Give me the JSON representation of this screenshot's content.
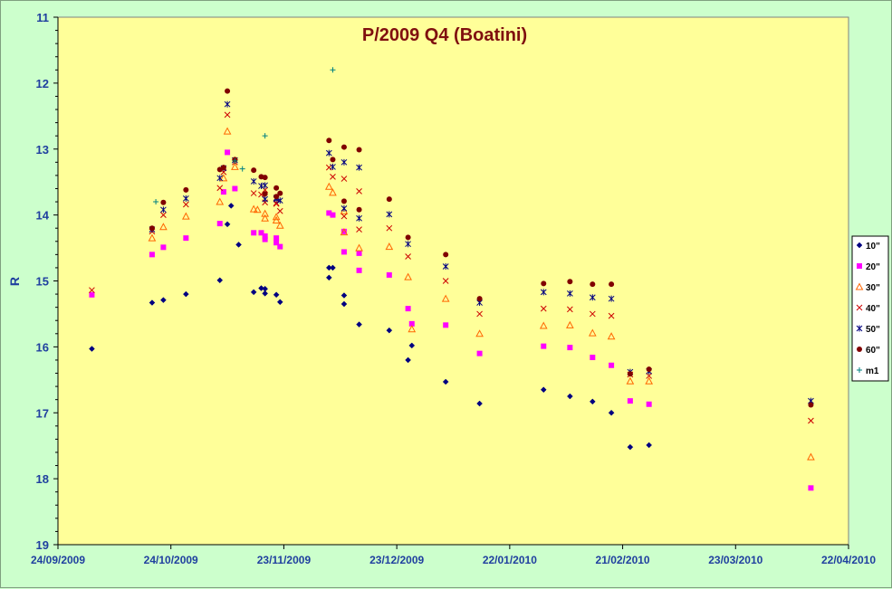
{
  "chart_data": {
    "type": "scatter",
    "title": "P/2009 Q4 (Boatini)",
    "xlabel": "",
    "ylabel": "R",
    "ylim": [
      11,
      19
    ],
    "y_reversed": true,
    "y_ticks": [
      "11",
      "12",
      "13",
      "14",
      "15",
      "16",
      "17",
      "18",
      "19"
    ],
    "x_range": [
      "2009-09-24",
      "2010-04-22"
    ],
    "x_tick_labels": [
      "24/09/2009",
      "24/10/2009",
      "23/11/2009",
      "23/12/2009",
      "22/01/2010",
      "21/02/2010",
      "23/03/2010",
      "22/04/2010"
    ],
    "grid": false,
    "legend_position": "right",
    "plot_background": "#ffff99",
    "series": [
      {
        "name": "10\"",
        "marker": "diamond",
        "color": "#000080",
        "points": [
          [
            "2009-10-03",
            16.03
          ],
          [
            "2009-10-19",
            15.33
          ],
          [
            "2009-10-22",
            15.29
          ],
          [
            "2009-10-28",
            15.2
          ],
          [
            "2009-11-06",
            14.99
          ],
          [
            "2009-11-08",
            14.14
          ],
          [
            "2009-11-09",
            13.86
          ],
          [
            "2009-11-11",
            14.45
          ],
          [
            "2009-11-15",
            15.17
          ],
          [
            "2009-11-17",
            15.11
          ],
          [
            "2009-11-18",
            15.12
          ],
          [
            "2009-11-18",
            15.19
          ],
          [
            "2009-11-21",
            15.21
          ],
          [
            "2009-11-22",
            15.32
          ],
          [
            "2009-12-05",
            14.95
          ],
          [
            "2009-12-05",
            14.8
          ],
          [
            "2009-12-06",
            14.8
          ],
          [
            "2009-12-09",
            15.22
          ],
          [
            "2009-12-09",
            15.35
          ],
          [
            "2009-12-13",
            15.66
          ],
          [
            "2009-12-21",
            15.75
          ],
          [
            "2009-12-26",
            16.2
          ],
          [
            "2009-12-27",
            15.98
          ],
          [
            "2010-01-05",
            16.53
          ],
          [
            "2010-01-14",
            16.86
          ],
          [
            "2010-01-31",
            16.65
          ],
          [
            "2010-02-07",
            16.75
          ],
          [
            "2010-02-13",
            16.83
          ],
          [
            "2010-02-18",
            17.0
          ],
          [
            "2010-02-23",
            17.52
          ],
          [
            "2010-02-28",
            17.49
          ]
        ]
      },
      {
        "name": "20\"",
        "marker": "square",
        "color": "#ff00ff",
        "points": [
          [
            "2009-10-03",
            15.21
          ],
          [
            "2009-10-19",
            14.6
          ],
          [
            "2009-10-22",
            14.49
          ],
          [
            "2009-10-28",
            14.35
          ],
          [
            "2009-11-06",
            14.13
          ],
          [
            "2009-11-07",
            13.65
          ],
          [
            "2009-11-08",
            13.05
          ],
          [
            "2009-11-10",
            13.6
          ],
          [
            "2009-11-15",
            14.27
          ],
          [
            "2009-11-17",
            14.27
          ],
          [
            "2009-11-18",
            14.32
          ],
          [
            "2009-11-18",
            14.37
          ],
          [
            "2009-11-21",
            14.35
          ],
          [
            "2009-11-21",
            14.42
          ],
          [
            "2009-11-22",
            14.48
          ],
          [
            "2009-12-05",
            13.97
          ],
          [
            "2009-12-06",
            14.0
          ],
          [
            "2009-12-09",
            14.25
          ],
          [
            "2009-12-09",
            14.56
          ],
          [
            "2009-12-13",
            14.84
          ],
          [
            "2009-12-13",
            14.58
          ],
          [
            "2009-12-21",
            14.91
          ],
          [
            "2009-12-26",
            15.42
          ],
          [
            "2009-12-27",
            15.65
          ],
          [
            "2010-01-05",
            15.67
          ],
          [
            "2010-01-14",
            16.1
          ],
          [
            "2010-01-31",
            15.99
          ],
          [
            "2010-02-07",
            16.01
          ],
          [
            "2010-02-13",
            16.16
          ],
          [
            "2010-02-18",
            16.28
          ],
          [
            "2010-02-23",
            16.82
          ],
          [
            "2010-02-28",
            16.87
          ],
          [
            "2010-04-12",
            18.14
          ]
        ]
      },
      {
        "name": "30\"",
        "marker": "triangle",
        "color": "#ff6600",
        "points": [
          [
            "2009-10-19",
            14.35
          ],
          [
            "2009-10-22",
            14.18
          ],
          [
            "2009-10-28",
            14.02
          ],
          [
            "2009-11-06",
            13.8
          ],
          [
            "2009-11-07",
            13.44
          ],
          [
            "2009-11-08",
            12.73
          ],
          [
            "2009-11-10",
            13.27
          ],
          [
            "2009-11-15",
            13.91
          ],
          [
            "2009-11-16",
            13.92
          ],
          [
            "2009-11-18",
            13.98
          ],
          [
            "2009-11-18",
            14.05
          ],
          [
            "2009-11-21",
            14.03
          ],
          [
            "2009-11-21",
            14.08
          ],
          [
            "2009-11-22",
            14.16
          ],
          [
            "2009-12-05",
            13.57
          ],
          [
            "2009-12-06",
            13.66
          ],
          [
            "2009-12-09",
            13.94
          ],
          [
            "2009-12-09",
            14.26
          ],
          [
            "2009-12-13",
            14.5
          ],
          [
            "2009-12-21",
            14.48
          ],
          [
            "2009-12-26",
            14.94
          ],
          [
            "2009-12-27",
            15.73
          ],
          [
            "2010-01-05",
            15.27
          ],
          [
            "2010-01-14",
            15.8
          ],
          [
            "2010-01-31",
            15.68
          ],
          [
            "2010-02-07",
            15.67
          ],
          [
            "2010-02-13",
            15.79
          ],
          [
            "2010-02-18",
            15.84
          ],
          [
            "2010-02-23",
            16.52
          ],
          [
            "2010-02-28",
            16.52
          ],
          [
            "2010-04-12",
            17.67
          ]
        ]
      },
      {
        "name": "40\"",
        "marker": "x",
        "color": "#cc0000",
        "points": [
          [
            "2009-10-03",
            15.14
          ],
          [
            "2009-10-19",
            14.25
          ],
          [
            "2009-10-22",
            14.0
          ],
          [
            "2009-10-28",
            13.84
          ],
          [
            "2009-11-06",
            13.59
          ],
          [
            "2009-11-07",
            13.35
          ],
          [
            "2009-11-08",
            12.48
          ],
          [
            "2009-11-10",
            13.2
          ],
          [
            "2009-11-15",
            13.67
          ],
          [
            "2009-11-17",
            13.69
          ],
          [
            "2009-11-18",
            13.62
          ],
          [
            "2009-11-18",
            13.81
          ],
          [
            "2009-11-21",
            13.82
          ],
          [
            "2009-11-21",
            13.83
          ],
          [
            "2009-11-22",
            13.94
          ],
          [
            "2009-12-05",
            13.28
          ],
          [
            "2009-12-06",
            13.42
          ],
          [
            "2009-12-09",
            13.45
          ],
          [
            "2009-12-09",
            14.02
          ],
          [
            "2009-12-13",
            13.64
          ],
          [
            "2009-12-13",
            14.22
          ],
          [
            "2009-12-21",
            14.2
          ],
          [
            "2009-12-26",
            14.63
          ],
          [
            "2010-01-05",
            15.0
          ],
          [
            "2010-01-14",
            15.5
          ],
          [
            "2010-01-31",
            15.42
          ],
          [
            "2010-02-07",
            15.43
          ],
          [
            "2010-02-13",
            15.5
          ],
          [
            "2010-02-18",
            15.53
          ],
          [
            "2010-02-23",
            16.42
          ],
          [
            "2010-02-28",
            16.44
          ],
          [
            "2010-04-12",
            17.12
          ]
        ]
      },
      {
        "name": "50\"",
        "marker": "star",
        "color": "#000080",
        "points": [
          [
            "2009-10-19",
            14.22
          ],
          [
            "2009-10-22",
            13.92
          ],
          [
            "2009-10-28",
            13.75
          ],
          [
            "2009-11-06",
            13.44
          ],
          [
            "2009-11-07",
            13.29
          ],
          [
            "2009-11-08",
            12.32
          ],
          [
            "2009-11-10",
            13.17
          ],
          [
            "2009-11-15",
            13.49
          ],
          [
            "2009-11-17",
            13.56
          ],
          [
            "2009-11-18",
            13.55
          ],
          [
            "2009-11-18",
            13.76
          ],
          [
            "2009-11-21",
            13.74
          ],
          [
            "2009-11-21",
            13.76
          ],
          [
            "2009-11-22",
            13.78
          ],
          [
            "2009-12-05",
            13.06
          ],
          [
            "2009-12-06",
            13.27
          ],
          [
            "2009-12-09",
            13.2
          ],
          [
            "2009-12-09",
            13.9
          ],
          [
            "2009-12-13",
            13.28
          ],
          [
            "2009-12-13",
            14.05
          ],
          [
            "2009-12-21",
            13.99
          ],
          [
            "2009-12-26",
            14.44
          ],
          [
            "2010-01-05",
            14.78
          ],
          [
            "2010-01-14",
            15.33
          ],
          [
            "2010-01-31",
            15.17
          ],
          [
            "2010-02-07",
            15.19
          ],
          [
            "2010-02-13",
            15.25
          ],
          [
            "2010-02-18",
            15.27
          ],
          [
            "2010-02-23",
            16.38
          ],
          [
            "2010-02-28",
            16.37
          ],
          [
            "2010-04-12",
            16.82
          ]
        ]
      },
      {
        "name": "60\"",
        "marker": "circle",
        "color": "#800000",
        "points": [
          [
            "2009-10-19",
            14.2
          ],
          [
            "2009-10-22",
            13.81
          ],
          [
            "2009-10-28",
            13.62
          ],
          [
            "2009-11-06",
            13.31
          ],
          [
            "2009-11-07",
            13.28
          ],
          [
            "2009-11-08",
            12.12
          ],
          [
            "2009-11-10",
            13.16
          ],
          [
            "2009-11-15",
            13.32
          ],
          [
            "2009-11-17",
            13.42
          ],
          [
            "2009-11-18",
            13.43
          ],
          [
            "2009-11-18",
            13.68
          ],
          [
            "2009-11-21",
            13.59
          ],
          [
            "2009-11-21",
            13.72
          ],
          [
            "2009-11-22",
            13.67
          ],
          [
            "2009-12-05",
            12.87
          ],
          [
            "2009-12-06",
            13.16
          ],
          [
            "2009-12-09",
            12.97
          ],
          [
            "2009-12-09",
            13.79
          ],
          [
            "2009-12-13",
            13.01
          ],
          [
            "2009-12-13",
            13.92
          ],
          [
            "2009-12-21",
            13.76
          ],
          [
            "2009-12-26",
            14.34
          ],
          [
            "2010-01-05",
            14.6
          ],
          [
            "2010-01-14",
            15.27
          ],
          [
            "2010-01-31",
            15.04
          ],
          [
            "2010-02-07",
            15.01
          ],
          [
            "2010-02-13",
            15.05
          ],
          [
            "2010-02-18",
            15.05
          ],
          [
            "2010-02-23",
            16.41
          ],
          [
            "2010-02-28",
            16.34
          ],
          [
            "2010-04-12",
            16.88
          ]
        ]
      },
      {
        "name": "m1",
        "marker": "plus",
        "color": "#008080",
        "points": [
          [
            "2009-10-20",
            13.8
          ],
          [
            "2009-11-10",
            13.18
          ],
          [
            "2009-11-12",
            13.3
          ],
          [
            "2009-11-18",
            12.8
          ],
          [
            "2009-12-06",
            11.8
          ]
        ]
      }
    ]
  }
}
